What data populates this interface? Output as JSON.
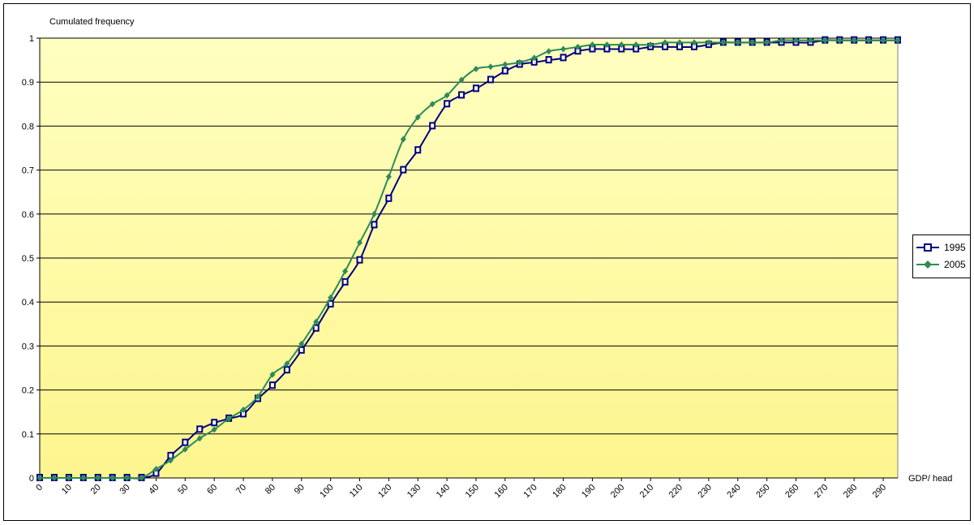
{
  "chart_data": {
    "type": "line",
    "title": "",
    "ylabel": "Cumulated frequency",
    "xlabel": "GDP/ head",
    "ylim": [
      0,
      1
    ],
    "yticks": [
      "0",
      "0.1",
      "0.2",
      "0.3",
      "0.4",
      "0.5",
      "0.6",
      "0.7",
      "0.8",
      "0.9",
      "1"
    ],
    "xlim": [
      0,
      295
    ],
    "xticks": [
      "0",
      "10",
      "20",
      "30",
      "40",
      "50",
      "60",
      "70",
      "80",
      "90",
      "100",
      "110",
      "120",
      "130",
      "140",
      "150",
      "160",
      "170",
      "180",
      "190",
      "200",
      "210",
      "220",
      "230",
      "240",
      "250",
      "260",
      "270",
      "280",
      "290"
    ],
    "grid": true,
    "legend_position": "right",
    "background": [
      "#ffffc0",
      "#fdf58e"
    ],
    "series": [
      {
        "name": "1995",
        "color": "#000080",
        "marker": "square",
        "x": [
          0,
          5,
          10,
          15,
          20,
          25,
          30,
          35,
          40,
          45,
          50,
          55,
          60,
          65,
          70,
          75,
          80,
          85,
          90,
          95,
          100,
          105,
          110,
          115,
          120,
          125,
          130,
          135,
          140,
          145,
          150,
          155,
          160,
          165,
          170,
          175,
          180,
          185,
          190,
          195,
          200,
          205,
          210,
          215,
          220,
          225,
          230,
          235,
          240,
          245,
          250,
          255,
          260,
          265,
          270,
          275,
          280,
          285,
          290,
          295
        ],
        "y": [
          0,
          0,
          0,
          0,
          0,
          0,
          0,
          0,
          0.01,
          0.05,
          0.08,
          0.11,
          0.125,
          0.135,
          0.145,
          0.18,
          0.21,
          0.245,
          0.29,
          0.34,
          0.395,
          0.445,
          0.495,
          0.575,
          0.635,
          0.7,
          0.745,
          0.8,
          0.85,
          0.87,
          0.885,
          0.905,
          0.925,
          0.94,
          0.945,
          0.95,
          0.955,
          0.97,
          0.975,
          0.975,
          0.975,
          0.975,
          0.98,
          0.98,
          0.98,
          0.98,
          0.985,
          0.99,
          0.99,
          0.99,
          0.99,
          0.99,
          0.99,
          0.99,
          0.995,
          0.995,
          0.995,
          0.995,
          0.995,
          0.995
        ]
      },
      {
        "name": "2005",
        "color": "#2e8b57",
        "marker": "diamond",
        "x": [
          0,
          5,
          10,
          15,
          20,
          25,
          30,
          35,
          40,
          45,
          50,
          55,
          60,
          65,
          70,
          75,
          80,
          85,
          90,
          95,
          100,
          105,
          110,
          115,
          120,
          125,
          130,
          135,
          140,
          145,
          150,
          155,
          160,
          165,
          170,
          175,
          180,
          185,
          190,
          195,
          200,
          205,
          210,
          215,
          220,
          225,
          230,
          235,
          240,
          245,
          250,
          255,
          260,
          265,
          270,
          275,
          280,
          285,
          290,
          295
        ],
        "y": [
          0,
          0,
          0,
          0,
          0,
          0,
          0,
          0,
          0.02,
          0.04,
          0.065,
          0.09,
          0.11,
          0.135,
          0.155,
          0.185,
          0.235,
          0.26,
          0.305,
          0.355,
          0.41,
          0.47,
          0.535,
          0.6,
          0.685,
          0.77,
          0.82,
          0.85,
          0.87,
          0.905,
          0.93,
          0.935,
          0.94,
          0.945,
          0.955,
          0.97,
          0.975,
          0.98,
          0.985,
          0.985,
          0.985,
          0.985,
          0.985,
          0.99,
          0.99,
          0.99,
          0.99,
          0.99,
          0.99,
          0.99,
          0.99,
          0.995,
          0.995,
          0.995,
          0.995,
          0.995,
          0.995,
          0.995,
          0.995,
          0.995
        ]
      }
    ]
  }
}
